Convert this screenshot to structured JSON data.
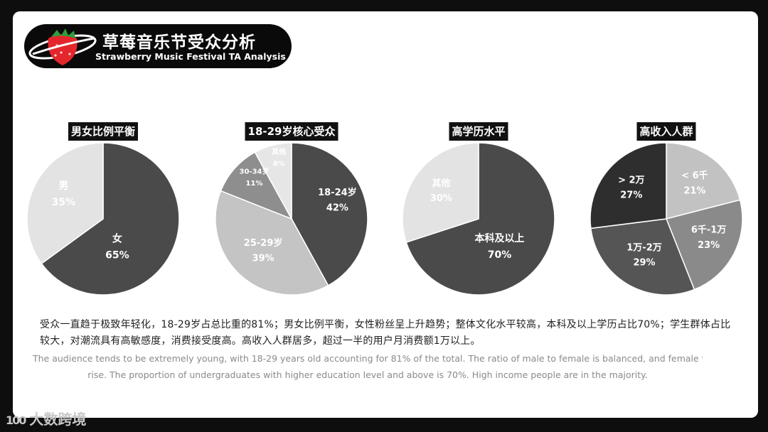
{
  "brand": {
    "title": "草莓音乐节受众分析",
    "subtitle": "Strawberry Music Festival TA Analysis"
  },
  "chart_data": [
    {
      "type": "pie",
      "title": "男女比例平衡",
      "slices": [
        {
          "label": "女",
          "value": 65,
          "display": "65%",
          "color": "#4a4a4a"
        },
        {
          "label": "男",
          "value": 35,
          "display": "35%",
          "color": "#e3e3e3"
        }
      ]
    },
    {
      "type": "pie",
      "title": "18-29岁核心受众",
      "slices": [
        {
          "label": "18-24岁",
          "value": 42,
          "display": "42%",
          "color": "#4a4a4a"
        },
        {
          "label": "25-29岁",
          "value": 39,
          "display": "39%",
          "color": "#c4c4c4"
        },
        {
          "label": "30-34岁",
          "value": 11,
          "display": "11%",
          "color": "#8e8e8e"
        },
        {
          "label": "其他",
          "value": 8,
          "display": "8%",
          "color": "#e6e6e6"
        }
      ]
    },
    {
      "type": "pie",
      "title": "高学历水平",
      "slices": [
        {
          "label": "本科及以上",
          "value": 70,
          "display": "70%",
          "color": "#4a4a4a"
        },
        {
          "label": "其他",
          "value": 30,
          "display": "30%",
          "color": "#e3e3e3"
        }
      ]
    },
    {
      "type": "pie",
      "title": "高收入人群",
      "slices": [
        {
          "label": "< 6千",
          "value": 21,
          "display": "21%",
          "color": "#c2c2c2"
        },
        {
          "label": "6千-1万",
          "value": 23,
          "display": "23%",
          "color": "#8a8a8a"
        },
        {
          "label": "1万-2万",
          "value": 29,
          "display": "29%",
          "color": "#555555"
        },
        {
          "label": "> 2万",
          "value": 27,
          "display": "27%",
          "color": "#2e2e2e"
        }
      ]
    }
  ],
  "description": {
    "cn": "受众一直趋于极致年轻化，18-29岁占总比重的81%；男女比例平衡，女性粉丝呈上升趋势；整体文化水平较高，本科及以上学历占比70%；学生群体占比较大，对潮流具有高敏感度，消费接受度高。高收入人群居多，超过一半的用户月消费额1万以上。",
    "en_line1": "The audience  tends to be extremely young, with 18-29 years old accounting for 81% of the total. The ratio of male to female is balanced, and female fans are",
    "en_line2": "rise. The proportion of undergraduates with higher education level and above is 70%. High income people are in the majority."
  },
  "watermark": {
    "icon": "100",
    "text": "大数跨境"
  }
}
